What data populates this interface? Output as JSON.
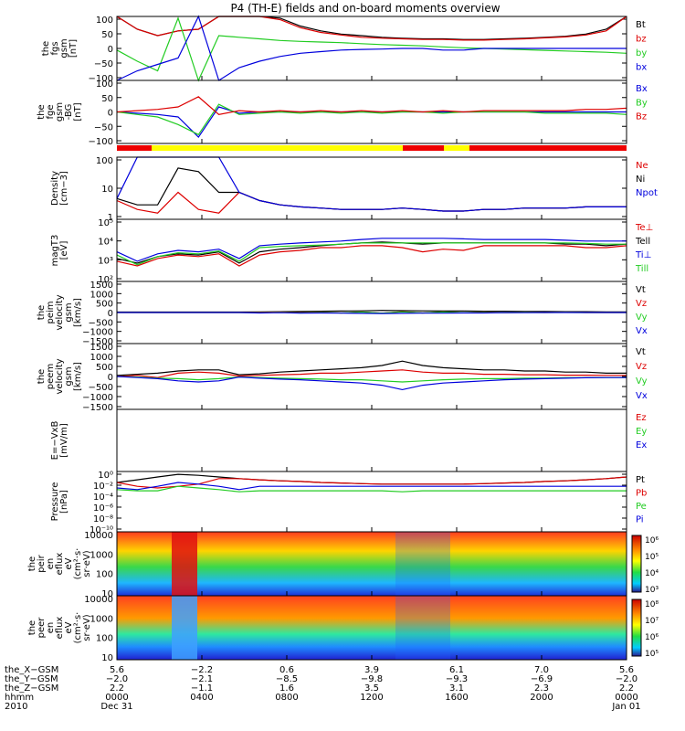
{
  "title": "P4 (TH-E) fields and on-board moments overview",
  "colors": {
    "black": "#000000",
    "red": "#dd0000",
    "green": "#22cc22",
    "blue": "#0000dd",
    "yellow": "#ffff00",
    "bar_red": "#ee0000"
  },
  "chart_data": [
    {
      "type": "line",
      "id": "fgs",
      "ylabel_lines": [
        "the",
        "fgs",
        "gsm",
        "[nT]"
      ],
      "ylim": [
        -100,
        100
      ],
      "yticks": [
        "100",
        "50",
        "0",
        "−50",
        "−100"
      ],
      "series": [
        {
          "name": "Bt",
          "color": "#000000",
          "values": [
            100,
            60,
            40,
            55,
            60,
            100,
            100,
            100,
            95,
            70,
            55,
            45,
            40,
            35,
            32,
            30,
            30,
            28,
            28,
            30,
            32,
            35,
            38,
            45,
            60,
            100
          ]
        },
        {
          "name": "bz",
          "color": "#dd0000",
          "values": [
            100,
            60,
            40,
            55,
            60,
            100,
            100,
            100,
            90,
            65,
            50,
            42,
            35,
            32,
            30,
            28,
            28,
            26,
            26,
            28,
            30,
            33,
            36,
            42,
            55,
            100
          ]
        },
        {
          "name": "by",
          "color": "#22cc22",
          "values": [
            -5,
            -40,
            -70,
            95,
            -100,
            40,
            35,
            30,
            25,
            22,
            20,
            18,
            15,
            12,
            10,
            8,
            5,
            2,
            0,
            -2,
            -4,
            -6,
            -8,
            -10,
            -12,
            -15
          ]
        },
        {
          "name": "bx",
          "color": "#0000dd",
          "values": [
            -100,
            -70,
            -50,
            -30,
            100,
            -100,
            -60,
            -40,
            -25,
            -15,
            -10,
            -5,
            -3,
            -2,
            0,
            0,
            -5,
            -5,
            0,
            0,
            0,
            0,
            0,
            0,
            0,
            0
          ]
        }
      ]
    },
    {
      "type": "line",
      "id": "fge",
      "ylabel_lines": [
        "the",
        "fge",
        "gsm",
        "-BG",
        "[nT]"
      ],
      "ylim": [
        -125,
        125
      ],
      "yticks": [
        "100",
        "50",
        "0",
        "−50",
        "−100"
      ],
      "series": [
        {
          "name": "Bx",
          "color": "#0000dd",
          "values": [
            0,
            -5,
            -10,
            -20,
            -100,
            20,
            -5,
            0,
            0,
            0,
            0,
            0,
            0,
            0,
            0,
            0,
            0,
            0,
            0,
            0,
            0,
            0,
            0,
            0,
            0,
            0
          ]
        },
        {
          "name": "By",
          "color": "#22cc22",
          "values": [
            0,
            -10,
            -20,
            -50,
            -90,
            30,
            -10,
            -5,
            0,
            -5,
            0,
            -5,
            0,
            -5,
            0,
            0,
            -5,
            0,
            0,
            0,
            0,
            -5,
            -5,
            -5,
            -5,
            -10
          ]
        },
        {
          "name": "Bz",
          "color": "#dd0000",
          "values": [
            0,
            5,
            10,
            20,
            60,
            -10,
            5,
            0,
            5,
            0,
            5,
            0,
            5,
            0,
            5,
            0,
            5,
            0,
            5,
            5,
            5,
            5,
            5,
            10,
            10,
            15
          ]
        }
      ]
    },
    {
      "type": "line",
      "id": "density",
      "scale": "log",
      "ylabel_lines": [
        "Density",
        "[cm−3]"
      ],
      "ylim": [
        0.1,
        100
      ],
      "yticks": [
        "100",
        "10",
        "1"
      ],
      "series": [
        {
          "name": "Ne",
          "color": "#dd0000",
          "values": [
            0.8,
            0.3,
            0.2,
            2,
            0.3,
            0.2,
            2,
            0.8,
            0.5,
            0.4,
            0.35,
            0.3,
            0.3,
            0.3,
            0.35,
            0.3,
            0.25,
            0.25,
            0.3,
            0.3,
            0.35,
            0.35,
            0.35,
            0.4,
            0.4,
            0.4
          ]
        },
        {
          "name": "Ni",
          "color": "#000000",
          "values": [
            1,
            0.5,
            0.5,
            30,
            20,
            2,
            2,
            0.8,
            0.5,
            0.4,
            0.35,
            0.3,
            0.3,
            0.3,
            0.35,
            0.3,
            0.25,
            0.25,
            0.3,
            0.3,
            0.35,
            0.35,
            0.35,
            0.4,
            0.4,
            0.4
          ]
        },
        {
          "name": "Npot",
          "color": "#0000dd",
          "values": [
            1,
            100,
            100,
            100,
            100,
            100,
            2,
            0.8,
            0.5,
            0.4,
            0.35,
            0.3,
            0.3,
            0.3,
            0.35,
            0.3,
            0.25,
            0.25,
            0.3,
            0.3,
            0.35,
            0.35,
            0.35,
            0.4,
            0.4,
            0.4
          ]
        }
      ]
    },
    {
      "type": "line",
      "id": "temp",
      "scale": "log",
      "ylabel_lines": [
        "magT3",
        "[eV]"
      ],
      "ylim": [
        10,
        100000
      ],
      "yticks": [
        "10⁵",
        "10⁴",
        "10³",
        "10²"
      ],
      "series": [
        {
          "name": "Te⊥",
          "color": "#dd0000",
          "values": [
            200,
            100,
            300,
            500,
            400,
            600,
            100,
            500,
            800,
            1000,
            1500,
            1500,
            2000,
            2000,
            1500,
            800,
            1200,
            1000,
            2000,
            2000,
            2000,
            2000,
            2000,
            1500,
            1500,
            2000
          ]
        },
        {
          "name": "Tell",
          "color": "#000000",
          "values": [
            300,
            150,
            400,
            600,
            500,
            800,
            150,
            800,
            1200,
            1500,
            2000,
            2500,
            3000,
            3500,
            3000,
            2500,
            3000,
            3000,
            3000,
            3000,
            3000,
            3000,
            2500,
            2500,
            2000,
            2500
          ]
        },
        {
          "name": "Ti⊥",
          "color": "#0000dd",
          "values": [
            800,
            200,
            600,
            1000,
            800,
            1200,
            300,
            2000,
            2500,
            3000,
            3500,
            4000,
            5000,
            6000,
            6000,
            6000,
            6000,
            5500,
            5000,
            5000,
            5000,
            5000,
            4500,
            4000,
            4000,
            4000
          ]
        },
        {
          "name": "Till",
          "color": "#22cc22",
          "values": [
            500,
            120,
            400,
            700,
            600,
            900,
            200,
            1500,
            1800,
            2000,
            2200,
            2500,
            3000,
            3000,
            3000,
            3000,
            3000,
            3000,
            3000,
            3000,
            3000,
            3000,
            3000,
            2800,
            2500,
            2500
          ]
        }
      ]
    },
    {
      "type": "line",
      "id": "peim",
      "ylabel_lines": [
        "the",
        "peim",
        "velocity",
        "gsm",
        "[km/s]"
      ],
      "ylim": [
        -1500,
        1500
      ],
      "yticks": [
        "1500",
        "1000",
        "500",
        "0",
        "−500",
        "−1000",
        "−1500"
      ],
      "series": [
        {
          "name": "Vt",
          "color": "#000000",
          "values": [
            20,
            20,
            20,
            20,
            20,
            20,
            20,
            30,
            40,
            50,
            60,
            70,
            80,
            100,
            90,
            80,
            70,
            70,
            60,
            60,
            50,
            50,
            40,
            40,
            30,
            30
          ]
        },
        {
          "name": "Vz",
          "color": "#dd0000",
          "values": [
            0,
            0,
            0,
            0,
            0,
            0,
            0,
            10,
            20,
            -10,
            20,
            -20,
            30,
            -30,
            40,
            -20,
            30,
            -10,
            20,
            -10,
            10,
            0,
            10,
            0,
            0,
            0
          ]
        },
        {
          "name": "Vy",
          "color": "#22cc22",
          "values": [
            0,
            0,
            0,
            0,
            0,
            0,
            0,
            -10,
            10,
            -20,
            10,
            -20,
            20,
            -30,
            30,
            -20,
            20,
            -10,
            10,
            -10,
            5,
            0,
            5,
            0,
            0,
            0
          ]
        },
        {
          "name": "Vx",
          "color": "#0000dd",
          "values": [
            0,
            0,
            0,
            0,
            0,
            0,
            0,
            -20,
            -10,
            -30,
            -20,
            -30,
            -40,
            -50,
            -40,
            -30,
            -30,
            -20,
            -20,
            -10,
            -10,
            0,
            0,
            0,
            0,
            0
          ]
        }
      ]
    },
    {
      "type": "line",
      "id": "peem",
      "ylabel_lines": [
        "the",
        "peem",
        "velocity",
        "gsm",
        "[km/s]"
      ],
      "ylim": [
        -1500,
        1500
      ],
      "yticks": [
        "1500",
        "1000",
        "500",
        "0",
        "−500",
        "−1000",
        "−1500"
      ],
      "series": [
        {
          "name": "Vt",
          "color": "#000000",
          "values": [
            50,
            100,
            150,
            250,
            300,
            300,
            80,
            120,
            200,
            250,
            300,
            350,
            400,
            500,
            700,
            500,
            400,
            350,
            300,
            300,
            250,
            250,
            200,
            200,
            150,
            150
          ]
        },
        {
          "name": "Vz",
          "color": "#dd0000",
          "values": [
            0,
            50,
            -50,
            150,
            200,
            150,
            20,
            50,
            80,
            100,
            150,
            150,
            200,
            250,
            300,
            200,
            150,
            150,
            100,
            100,
            80,
            80,
            60,
            60,
            50,
            50
          ]
        },
        {
          "name": "Vy",
          "color": "#22cc22",
          "values": [
            0,
            -30,
            -80,
            -100,
            -150,
            -100,
            -20,
            -50,
            -80,
            -100,
            -120,
            -150,
            -150,
            -200,
            -250,
            -200,
            -150,
            -120,
            -100,
            -100,
            -80,
            -80,
            -60,
            -60,
            -50,
            -50
          ]
        },
        {
          "name": "Vx",
          "color": "#0000dd",
          "values": [
            0,
            -50,
            -100,
            -200,
            -250,
            -200,
            -30,
            -80,
            -120,
            -150,
            -200,
            -250,
            -300,
            -400,
            -600,
            -400,
            -300,
            -250,
            -200,
            -150,
            -120,
            -100,
            -80,
            -60,
            -50,
            -50
          ]
        }
      ]
    },
    {
      "type": "line",
      "id": "efield",
      "ylabel_lines": [
        "E=−VxB",
        "[mV/m]"
      ],
      "ylim": [
        -1,
        1
      ],
      "yticks": [],
      "series": [
        {
          "name": "Ez",
          "color": "#dd0000",
          "values": []
        },
        {
          "name": "Ey",
          "color": "#22cc22",
          "values": []
        },
        {
          "name": "Ex",
          "color": "#0000dd",
          "values": []
        }
      ]
    },
    {
      "type": "line",
      "id": "pressure",
      "scale": "log",
      "ylabel_lines": [
        "Pressure",
        "[nPa]"
      ],
      "ylim": [
        1e-10,
        10
      ],
      "yticks": [
        "10⁰",
        "10⁻²",
        "10⁻⁴",
        "10⁻⁶",
        "10⁻⁸",
        "10⁻¹⁰"
      ],
      "series": [
        {
          "name": "Pt",
          "color": "#000000",
          "values": [
            0.1,
            0.3,
            1,
            3,
            2,
            1,
            0.5,
            0.3,
            0.2,
            0.15,
            0.1,
            0.08,
            0.06,
            0.05,
            0.05,
            0.05,
            0.05,
            0.05,
            0.06,
            0.08,
            0.1,
            0.15,
            0.2,
            0.3,
            0.5,
            1
          ]
        },
        {
          "name": "Pb",
          "color": "#dd0000",
          "values": [
            0.1,
            0.02,
            0.01,
            0.02,
            0.05,
            0.5,
            0.5,
            0.3,
            0.2,
            0.15,
            0.1,
            0.08,
            0.06,
            0.05,
            0.05,
            0.05,
            0.05,
            0.05,
            0.06,
            0.08,
            0.1,
            0.15,
            0.2,
            0.3,
            0.5,
            1
          ]
        },
        {
          "name": "Pe",
          "color": "#22cc22",
          "values": [
            0.005,
            0.003,
            0.003,
            0.02,
            0.01,
            0.005,
            0.002,
            0.003,
            0.003,
            0.003,
            0.003,
            0.003,
            0.003,
            0.003,
            0.002,
            0.003,
            0.003,
            0.003,
            0.003,
            0.003,
            0.003,
            0.003,
            0.003,
            0.003,
            0.003,
            0.003
          ]
        },
        {
          "name": "Pi",
          "color": "#0000dd",
          "values": [
            0.01,
            0.005,
            0.02,
            0.1,
            0.05,
            0.02,
            0.005,
            0.02,
            0.02,
            0.02,
            0.02,
            0.02,
            0.02,
            0.02,
            0.02,
            0.02,
            0.02,
            0.02,
            0.02,
            0.02,
            0.02,
            0.02,
            0.02,
            0.02,
            0.02,
            0.02
          ]
        }
      ]
    },
    {
      "type": "heatmap",
      "id": "peir",
      "ylabel_lines": [
        "the",
        "peir",
        "en",
        "eflux",
        "eV",
        "(cm²·s·",
        "sr·eV)"
      ],
      "yticks": [
        "10000",
        "1000",
        "100",
        "10"
      ],
      "colorbar_ticks": [
        "10⁶",
        "10⁵",
        "10⁴",
        "10³"
      ]
    },
    {
      "type": "heatmap",
      "id": "peer",
      "ylabel_lines": [
        "the",
        "peer",
        "en",
        "eflux",
        "eV",
        "(cm²·s·",
        "sr·eV)"
      ],
      "yticks": [
        "10000",
        "1000",
        "100",
        "10"
      ],
      "colorbar_ticks": [
        "10⁸",
        "10⁷",
        "10⁶",
        "10⁵"
      ]
    }
  ],
  "xaxis": {
    "row_labels": [
      "the_X−GSM",
      "the_Y−GSM",
      "the_Z−GSM",
      "hhmm",
      "2010"
    ],
    "columns": [
      [
        "5.6",
        "−2.0",
        "2.2",
        "0000",
        "Dec 31"
      ],
      [
        "−2.2",
        "−2.1",
        "−1.1",
        "0400",
        ""
      ],
      [
        "0.6",
        "−8.5",
        "1.6",
        "0800",
        ""
      ],
      [
        "3.9",
        "−9.8",
        "3.5",
        "1200",
        ""
      ],
      [
        "6.1",
        "−9.3",
        "3.1",
        "1600",
        ""
      ],
      [
        "7.0",
        "−6.9",
        "2.3",
        "2000",
        ""
      ],
      [
        "5.6",
        "−2.0",
        "2.2",
        "0000",
        "Jan 01"
      ]
    ]
  }
}
